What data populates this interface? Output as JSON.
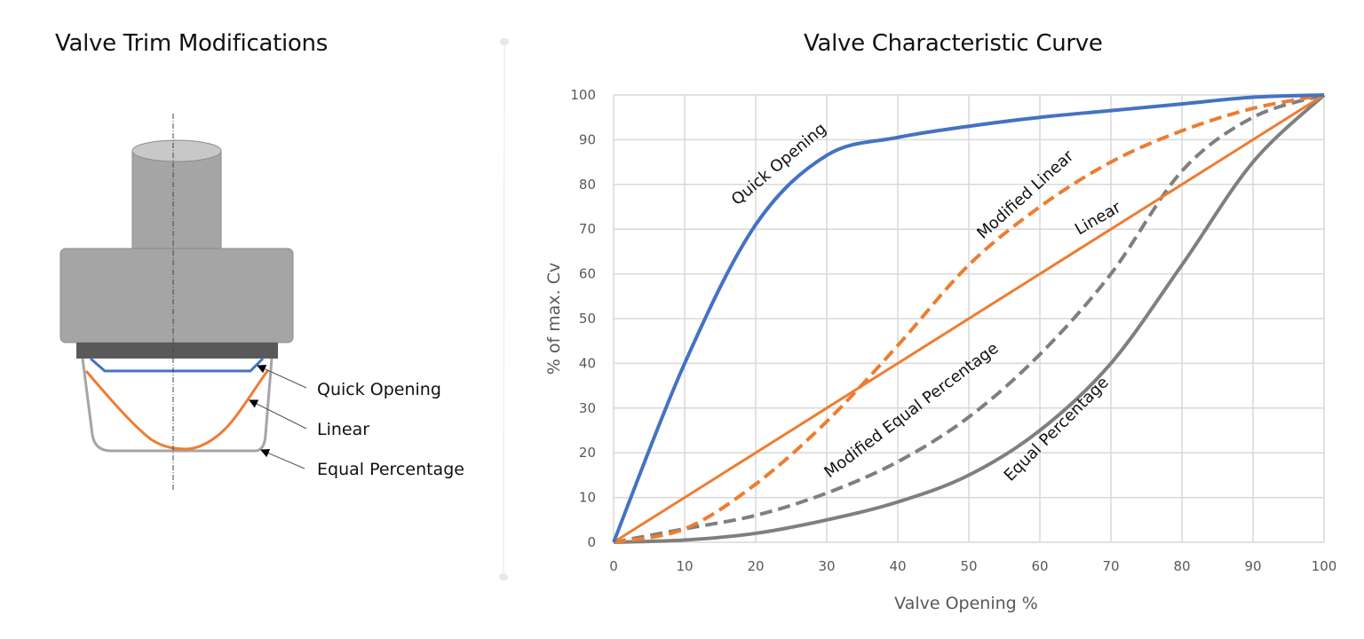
{
  "left_panel": {
    "title": "Valve Trim Modifications",
    "labels": [
      {
        "text": "Quick Opening",
        "color": "#4472C4"
      },
      {
        "text": "Linear",
        "color": "#ED7D31"
      },
      {
        "text": "Equal Percentage",
        "color": "#A5A5A5"
      }
    ]
  },
  "right_panel": {
    "title": "Valve Characteristic Curve"
  },
  "colors": {
    "quick_opening": "#4472C4",
    "linear": "#ED7D31",
    "equal_percentage": "#7F7F7F",
    "grid": "#D9D9D9"
  },
  "chart_data": {
    "type": "line",
    "title": "Valve Characteristic Curve",
    "xlabel": "Valve Opening %",
    "ylabel": "% of max. Cv",
    "xlim": [
      0,
      100
    ],
    "ylim": [
      0,
      100
    ],
    "x_ticks": [
      0,
      10,
      20,
      30,
      40,
      50,
      60,
      70,
      80,
      90,
      100
    ],
    "y_ticks": [
      0,
      10,
      20,
      30,
      40,
      50,
      60,
      70,
      80,
      90,
      100
    ],
    "grid": true,
    "legend": "none (inline curve labels)",
    "x": [
      0,
      10,
      20,
      30,
      40,
      50,
      60,
      70,
      80,
      90,
      100
    ],
    "series": [
      {
        "name": "Quick Opening",
        "style": "solid",
        "color": "#4472C4",
        "values": [
          0,
          40,
          71,
          86.5,
          90.5,
          93,
          95,
          96.5,
          98,
          99.5,
          100
        ]
      },
      {
        "name": "Modified Linear",
        "style": "dashed",
        "color": "#ED7D31",
        "values": [
          0,
          3,
          13,
          27,
          44,
          62,
          75,
          85,
          92,
          97,
          100
        ]
      },
      {
        "name": "Linear",
        "style": "solid",
        "color": "#ED7D31",
        "values": [
          0,
          10,
          20,
          30,
          40,
          50,
          60,
          70,
          80,
          90,
          100
        ]
      },
      {
        "name": "Modified Equal Percentage",
        "style": "dashed",
        "color": "#7F7F7F",
        "values": [
          0,
          3,
          6,
          11,
          18,
          28,
          42,
          60,
          83,
          95,
          100
        ]
      },
      {
        "name": "Equal Percentage",
        "style": "solid",
        "color": "#7F7F7F",
        "values": [
          0,
          0.5,
          2,
          5,
          9,
          15,
          25,
          40,
          62,
          85,
          100
        ]
      }
    ]
  }
}
